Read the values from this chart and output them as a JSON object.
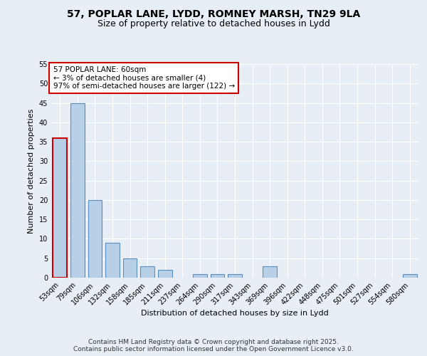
{
  "title_line1": "57, POPLAR LANE, LYDD, ROMNEY MARSH, TN29 9LA",
  "title_line2": "Size of property relative to detached houses in Lydd",
  "xlabel": "Distribution of detached houses by size in Lydd",
  "ylabel": "Number of detached properties",
  "categories": [
    "53sqm",
    "79sqm",
    "106sqm",
    "132sqm",
    "158sqm",
    "185sqm",
    "211sqm",
    "237sqm",
    "264sqm",
    "290sqm",
    "317sqm",
    "343sqm",
    "369sqm",
    "396sqm",
    "422sqm",
    "448sqm",
    "475sqm",
    "501sqm",
    "527sqm",
    "554sqm",
    "580sqm"
  ],
  "values": [
    36,
    45,
    20,
    9,
    5,
    3,
    2,
    0,
    1,
    1,
    1,
    0,
    3,
    0,
    0,
    0,
    0,
    0,
    0,
    0,
    1
  ],
  "bar_color": "#b8cfe8",
  "bar_edge_color": "#5a8fc0",
  "highlight_bar_index": 0,
  "highlight_edge_color": "#cc0000",
  "annotation_box_text": "57 POPLAR LANE: 60sqm\n← 3% of detached houses are smaller (4)\n97% of semi-detached houses are larger (122) →",
  "annotation_box_color": "#ffffff",
  "annotation_box_edge_color": "#cc0000",
  "ylim": [
    0,
    55
  ],
  "yticks": [
    0,
    5,
    10,
    15,
    20,
    25,
    30,
    35,
    40,
    45,
    50,
    55
  ],
  "bg_color": "#e8eef5",
  "plot_bg_color": "#e8eef5",
  "footer_text": "Contains HM Land Registry data © Crown copyright and database right 2025.\nContains public sector information licensed under the Open Government Licence v3.0.",
  "grid_color": "#ffffff",
  "title_fontsize": 10,
  "subtitle_fontsize": 9,
  "tick_fontsize": 7,
  "ylabel_fontsize": 8,
  "xlabel_fontsize": 8,
  "annotation_fontsize": 7.5,
  "footer_fontsize": 6.5
}
